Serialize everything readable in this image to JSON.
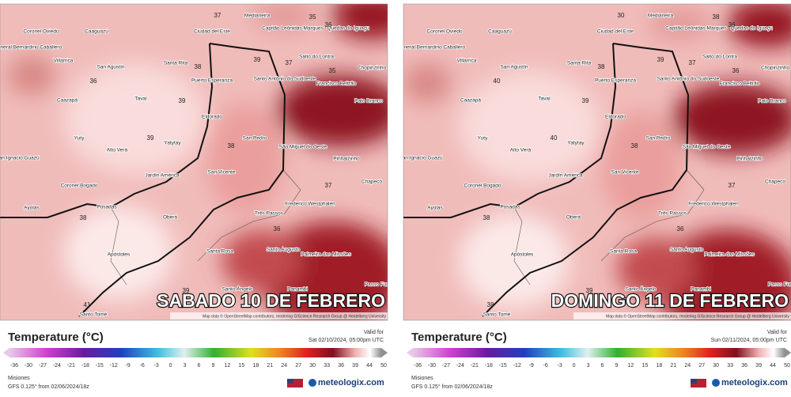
{
  "panels": [
    {
      "title": "SABADO 10 DE FEBRERO",
      "attribution": "Map data © OpenStreetMap contributors, rendering GIScience Research Group @ Heidelberg University",
      "legend_title": "Temperature (°C)",
      "valid_label": "Valid for",
      "valid_time": "Sat 02/10/2024, 05:00pm UTC",
      "scale_ticks": [
        -36,
        -30,
        -27,
        -24,
        -21,
        -18,
        -15,
        -12,
        -9,
        -6,
        -3,
        0,
        3,
        6,
        9,
        12,
        15,
        18,
        21,
        24,
        27,
        30,
        33,
        36,
        39,
        44,
        50
      ],
      "region": "Misiones",
      "model": "GFS 0.125° from 02/06/2024/18z",
      "brand": "meteologix.com",
      "places": [
        "Coronel Oviedo",
        "Caaguazú",
        "Ciudad del Este",
        "Medianeira",
        "Capitão Leônidas Marques",
        "Quedas do Iguaçu",
        "General Bernardino Caballero",
        "Villarrica",
        "San Agustín",
        "Santa Rita",
        "Puerto Esperanza",
        "Salto do Lontra",
        "Santo Antônio do Sudoeste",
        "Francisco Beltrão",
        "Chopinzinho",
        "Caazapá",
        "Tavaí",
        "Pato Branco",
        "Eldorado",
        "Yuty",
        "Alto Verá",
        "Yatytay",
        "San Pedro",
        "São Miguel do Oeste",
        "San Ignacio Guazú",
        "Jardín América",
        "San Vicente",
        "Pinhalzinho",
        "Coronel Bogado",
        "Chapecó",
        "Ayolas",
        "Posadas",
        "Frederico Westphalen",
        "Oberá",
        "Três Passos",
        "Apóstoles",
        "Santa Rosa",
        "Santo Augusto",
        "Palmeira das Missões",
        "Santo Ângelo",
        "Panambi",
        "Passo Fundo",
        "Santo Tomé"
      ],
      "contours": [
        37,
        35,
        36,
        38,
        36,
        39,
        37,
        35,
        39,
        39,
        38,
        37,
        38,
        36,
        39,
        41
      ]
    },
    {
      "title": "DOMINGO 11 DE FEBRERO",
      "attribution": "Map data © OpenStreetMap contributors, rendering GIScience Research Group @ Heidelberg University",
      "legend_title": "Temperature (°C)",
      "valid_label": "Valid for",
      "valid_time": "Sun 02/11/2024, 05:00pm UTC",
      "scale_ticks": [
        -36,
        -30,
        -27,
        -24,
        -21,
        -18,
        -15,
        -12,
        -9,
        -6,
        -3,
        0,
        3,
        6,
        9,
        12,
        15,
        18,
        21,
        24,
        27,
        30,
        33,
        36,
        39,
        44,
        50
      ],
      "region": "Misiones",
      "model": "GFS 0.125° from 02/06/2024/18z",
      "brand": "meteologix.com",
      "places": [
        "Coronel Oviedo",
        "Caaguazú",
        "Ciudad del Este",
        "Medianeira",
        "Capitão Leônidas Marques",
        "Quedas do Iguaçu",
        "General Bernardino Caballero",
        "Villarrica",
        "San Agustín",
        "Santa Rita",
        "Puerto Esperanza",
        "Salto do Lontra",
        "Santo Antônio do Sudoeste",
        "Francisco Beltrão",
        "Chopinzinho",
        "Caazapá",
        "Tavaí",
        "Pato Branco",
        "Eldorado",
        "Yuty",
        "Alto Verá",
        "Yatytay",
        "San Pedro",
        "São Miguel do Oeste",
        "San Ignacio Guazú",
        "Jardín América",
        "San Vicente",
        "Pinhalzinho",
        "Coronel Bogado",
        "Chapecó",
        "Ayolas",
        "Posadas",
        "Frederico Westphalen",
        "Oberá",
        "Três Passos",
        "Apóstoles",
        "Santa Rosa",
        "Santo Augusto",
        "Palmeira das Missões",
        "Santo Ângelo",
        "Panambi",
        "Passo Fundo",
        "Santo Tomé"
      ],
      "contours": [
        30,
        38,
        36,
        38,
        40,
        39,
        37,
        36,
        39,
        40,
        38,
        37,
        38,
        36,
        39,
        38
      ]
    }
  ]
}
